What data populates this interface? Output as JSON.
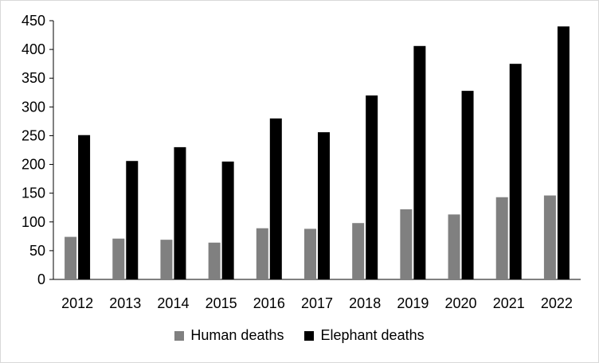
{
  "chart_data": {
    "type": "bar",
    "categories": [
      "2012",
      "2013",
      "2014",
      "2015",
      "2016",
      "2017",
      "2018",
      "2019",
      "2020",
      "2021",
      "2022"
    ],
    "series": [
      {
        "name": "Human deaths",
        "color": "#808080",
        "values": [
          74,
          71,
          69,
          64,
          89,
          88,
          98,
          122,
          113,
          143,
          146
        ]
      },
      {
        "name": "Elephant deaths",
        "color": "#000000",
        "values": [
          251,
          206,
          230,
          205,
          280,
          256,
          320,
          406,
          328,
          375,
          440
        ]
      }
    ],
    "title": "",
    "xlabel": "",
    "ylabel": "",
    "ylim": [
      0,
      450
    ],
    "yticks": [
      0,
      50,
      100,
      150,
      200,
      250,
      300,
      350,
      400,
      450
    ],
    "grid": false,
    "legend_position": "bottom"
  }
}
